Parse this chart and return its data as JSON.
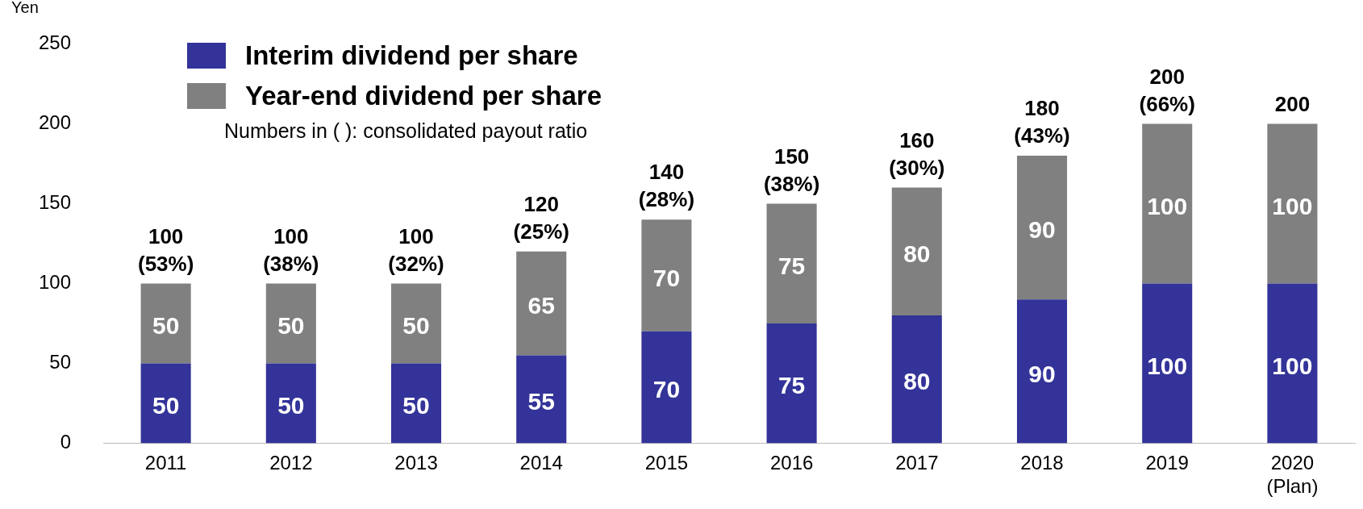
{
  "chart_data": {
    "type": "bar",
    "stacked": true,
    "categories": [
      "2011",
      "2012",
      "2013",
      "2014",
      "2015",
      "2016",
      "2017",
      "2018",
      "2019",
      "2020\n(Plan)"
    ],
    "series": [
      {
        "name": "Interim dividend per share",
        "color": "#333399",
        "values": [
          50,
          50,
          50,
          55,
          70,
          75,
          80,
          90,
          100,
          100
        ]
      },
      {
        "name": "Year-end dividend per share",
        "color": "#808080",
        "values": [
          50,
          50,
          50,
          65,
          70,
          75,
          80,
          90,
          100,
          100
        ]
      }
    ],
    "totals": [
      "100\n(53%)",
      "100\n(38%)",
      "100\n(32%)",
      "120\n(25%)",
      "140\n(28%)",
      "150\n(38%)",
      "160\n(30%)",
      "180\n(43%)",
      "200\n(66%)",
      "200"
    ],
    "data_labels": true,
    "ylabel": "Yen",
    "ylim": [
      0,
      250
    ],
    "yticks": [
      0,
      50,
      100,
      150,
      200,
      250
    ],
    "grid": false,
    "legend": "top left",
    "annotations": [
      "Numbers in ( ): consolidated payout ratio"
    ]
  }
}
